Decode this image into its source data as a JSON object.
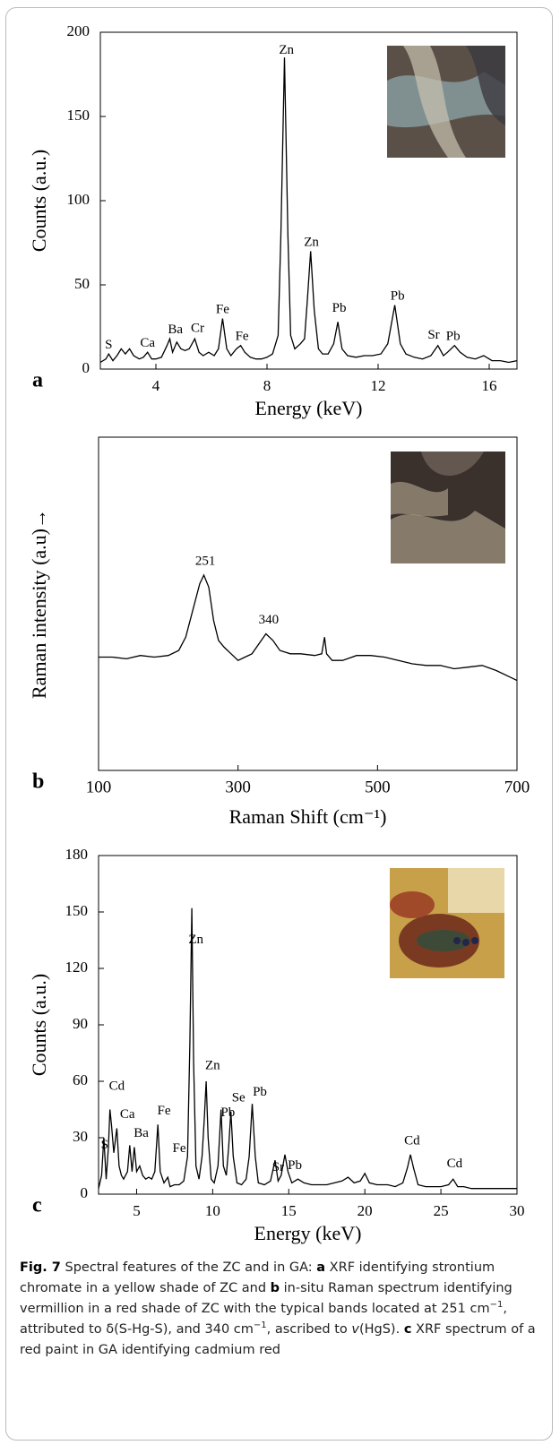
{
  "chart_data": [
    {
      "type": "line",
      "panel_label": "a",
      "xlabel": "Energy (keV)",
      "ylabel": "Counts (a.u.)",
      "color": "#000000",
      "xlim": [
        2,
        17
      ],
      "ylim": [
        0,
        200
      ],
      "xticks": [
        4,
        8,
        12,
        16
      ],
      "yticks": [
        0,
        50,
        100,
        150,
        200
      ],
      "x": [
        2.0,
        2.2,
        2.3,
        2.45,
        2.6,
        2.75,
        2.9,
        3.05,
        3.2,
        3.4,
        3.55,
        3.7,
        3.85,
        4.0,
        4.2,
        4.4,
        4.5,
        4.6,
        4.75,
        4.9,
        5.05,
        5.2,
        5.4,
        5.55,
        5.7,
        5.9,
        6.1,
        6.25,
        6.4,
        6.55,
        6.7,
        6.9,
        7.05,
        7.2,
        7.4,
        7.6,
        7.8,
        8.0,
        8.2,
        8.4,
        8.5,
        8.63,
        8.75,
        8.85,
        9.0,
        9.2,
        9.35,
        9.45,
        9.57,
        9.7,
        9.85,
        10.0,
        10.2,
        10.4,
        10.55,
        10.7,
        10.9,
        11.2,
        11.5,
        11.8,
        12.1,
        12.35,
        12.6,
        12.8,
        13.0,
        13.3,
        13.6,
        13.9,
        14.15,
        14.35,
        14.5,
        14.75,
        14.95,
        15.2,
        15.5,
        15.8,
        16.1,
        16.4,
        16.7,
        17.0
      ],
      "values": [
        4,
        6,
        9,
        5,
        8,
        12,
        9,
        12,
        8,
        6,
        7,
        10,
        6,
        6,
        7,
        14,
        18,
        10,
        16,
        12,
        11,
        12,
        18,
        10,
        8,
        10,
        8,
        12,
        30,
        12,
        8,
        12,
        14,
        10,
        7,
        6,
        6,
        7,
        9,
        20,
        80,
        185,
        80,
        20,
        12,
        15,
        18,
        40,
        70,
        35,
        12,
        9,
        9,
        15,
        28,
        12,
        8,
        7,
        8,
        8,
        9,
        15,
        38,
        15,
        9,
        7,
        6,
        8,
        14,
        8,
        10,
        14,
        10,
        7,
        6,
        8,
        5,
        5,
        4,
        5
      ],
      "annotations": [
        {
          "text": "S",
          "x": 2.3,
          "y": 14
        },
        {
          "text": "Ca",
          "x": 3.7,
          "y": 15
        },
        {
          "text": "Ba",
          "x": 4.7,
          "y": 23
        },
        {
          "text": "Cr",
          "x": 5.5,
          "y": 24
        },
        {
          "text": "Fe",
          "x": 6.4,
          "y": 35
        },
        {
          "text": "Fe",
          "x": 7.1,
          "y": 19
        },
        {
          "text": "Zn",
          "x": 8.7,
          "y": 189
        },
        {
          "text": "Zn",
          "x": 9.6,
          "y": 75
        },
        {
          "text": "Pb",
          "x": 10.6,
          "y": 36
        },
        {
          "text": "Pb",
          "x": 12.7,
          "y": 43
        },
        {
          "text": "Sr",
          "x": 14.0,
          "y": 20
        },
        {
          "text": "Pb",
          "x": 14.7,
          "y": 19
        }
      ]
    },
    {
      "type": "line",
      "panel_label": "b",
      "xlabel": "Raman Shift (cm⁻¹)",
      "ylabel": "Raman intensity (a.u)→",
      "color": "#000000",
      "xlim": [
        100,
        700
      ],
      "ylim": [
        0,
        100
      ],
      "xticks": [
        100,
        300,
        500,
        700
      ],
      "x": [
        100,
        120,
        140,
        160,
        180,
        200,
        215,
        225,
        235,
        245,
        251,
        258,
        265,
        272,
        280,
        290,
        300,
        310,
        320,
        330,
        340,
        350,
        360,
        375,
        390,
        410,
        420,
        424,
        427,
        435,
        450,
        470,
        490,
        510,
        530,
        550,
        570,
        590,
        610,
        630,
        650,
        670,
        690,
        700
      ],
      "values": [
        34,
        34,
        33.5,
        34.5,
        34,
        34.5,
        36,
        40,
        48,
        56,
        58.6,
        55,
        45,
        39,
        37,
        35,
        33,
        34,
        35,
        38,
        41,
        39,
        36,
        35,
        35,
        34.5,
        35,
        40,
        35,
        33,
        33,
        34.5,
        34.5,
        34,
        33,
        32,
        31.5,
        31.5,
        30.5,
        31,
        31.5,
        30,
        28,
        27
      ],
      "annotations": [
        {
          "text": "251",
          "x": 253,
          "y": 62.6
        },
        {
          "text": "340",
          "x": 344,
          "y": 45
        }
      ]
    },
    {
      "type": "line",
      "panel_label": "c",
      "xlabel": "Energy (keV)",
      "ylabel": "Counts (a.u.)",
      "color": "#000000",
      "xlim": [
        2.5,
        30
      ],
      "ylim": [
        0,
        180
      ],
      "xticks": [
        5,
        10,
        15,
        20,
        25,
        30
      ],
      "yticks": [
        0,
        30,
        60,
        90,
        120,
        150,
        180
      ],
      "x": [
        2.5,
        2.7,
        2.85,
        3.0,
        3.15,
        3.25,
        3.35,
        3.5,
        3.7,
        3.85,
        4.0,
        4.15,
        4.4,
        4.55,
        4.7,
        4.85,
        5.0,
        5.2,
        5.4,
        5.6,
        5.8,
        6.0,
        6.2,
        6.4,
        6.55,
        6.8,
        7.05,
        7.2,
        7.5,
        7.8,
        8.1,
        8.35,
        8.5,
        8.63,
        8.75,
        8.9,
        9.1,
        9.3,
        9.45,
        9.57,
        9.7,
        9.9,
        10.1,
        10.35,
        10.55,
        10.7,
        10.9,
        11.05,
        11.2,
        11.35,
        11.6,
        11.9,
        12.2,
        12.4,
        12.6,
        12.8,
        13.0,
        13.4,
        13.8,
        14.1,
        14.3,
        14.5,
        14.75,
        14.95,
        15.2,
        15.6,
        16.0,
        16.5,
        17.0,
        17.5,
        18.0,
        18.5,
        18.9,
        19.3,
        19.7,
        20.0,
        20.3,
        20.8,
        21.5,
        22.0,
        22.5,
        22.8,
        23.0,
        23.2,
        23.5,
        24.0,
        24.5,
        25.0,
        25.5,
        25.8,
        26.1,
        26.5,
        27,
        28,
        29,
        30
      ],
      "values": [
        3,
        10,
        30,
        8,
        25,
        45,
        37,
        22,
        35,
        15,
        10,
        8,
        12,
        26,
        12,
        25,
        12,
        15,
        10,
        8,
        9,
        8,
        12,
        37,
        12,
        6,
        9,
        4,
        5,
        5,
        7,
        20,
        80,
        152,
        70,
        15,
        8,
        20,
        40,
        60,
        30,
        8,
        6,
        15,
        45,
        15,
        10,
        25,
        44,
        20,
        6,
        5,
        8,
        20,
        48,
        20,
        6,
        5,
        7,
        18,
        7,
        10,
        21,
        12,
        6,
        8,
        6,
        5,
        5,
        5,
        6,
        7,
        9,
        6,
        7,
        11,
        6,
        5,
        5,
        4,
        6,
        14,
        21,
        14,
        5,
        4,
        4,
        4,
        5,
        8,
        4,
        4,
        3,
        3,
        3,
        3
      ],
      "annotations": [
        {
          "text": "S",
          "x": 2.9,
          "y": 26
        },
        {
          "text": "Cd",
          "x": 3.7,
          "y": 57
        },
        {
          "text": "Ca",
          "x": 4.4,
          "y": 42
        },
        {
          "text": "Ba",
          "x": 5.3,
          "y": 32
        },
        {
          "text": "Fe",
          "x": 6.8,
          "y": 44
        },
        {
          "text": "Fe",
          "x": 7.8,
          "y": 24
        },
        {
          "text": "Zn",
          "x": 8.9,
          "y": 135
        },
        {
          "text": "Zn",
          "x": 10.0,
          "y": 68
        },
        {
          "text": "Pb",
          "x": 11.0,
          "y": 43
        },
        {
          "text": "Se",
          "x": 11.7,
          "y": 51
        },
        {
          "text": "Pb",
          "x": 13.1,
          "y": 54
        },
        {
          "text": "Sr",
          "x": 14.3,
          "y": 14
        },
        {
          "text": "Pb",
          "x": 15.4,
          "y": 15
        },
        {
          "text": "Cd",
          "x": 23.1,
          "y": 28
        },
        {
          "text": "Cd",
          "x": 25.9,
          "y": 16
        }
      ]
    }
  ],
  "caption": [
    "Fig. 7",
    " Spectral features of the ZC and in GA: ",
    "a",
    " XRF identifying strontium chromate in a yellow shade of ZC and ",
    "b",
    " in-situ Raman spectrum identifying vermillion in a red shade of ZC with the typical bands located at 251 cm",
    "−1",
    ", attributed to δ(S-Hg-S), and 340 cm",
    "−1",
    ", ascribed to ",
    "v",
    "(HgS). ",
    "c",
    " XRF spectrum of a red paint in GA identifying cadmium red"
  ]
}
